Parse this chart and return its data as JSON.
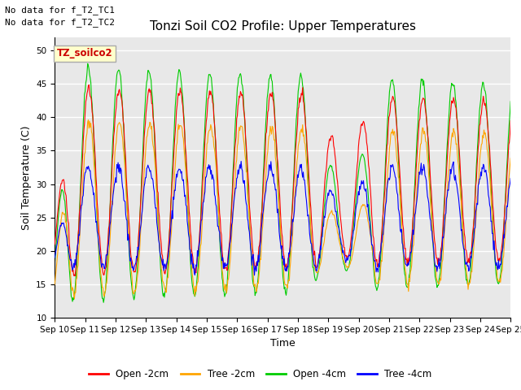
{
  "title": "Tonzi Soil CO2 Profile: Upper Temperatures",
  "xlabel": "Time",
  "ylabel": "Soil Temperature (C)",
  "ylim": [
    10,
    52
  ],
  "yticks": [
    10,
    15,
    20,
    25,
    30,
    35,
    40,
    45,
    50
  ],
  "colors": {
    "open_2cm": "#FF0000",
    "tree_2cm": "#FFA500",
    "open_4cm": "#00CC00",
    "tree_4cm": "#0000FF"
  },
  "legend_labels": [
    "Open -2cm",
    "Tree -2cm",
    "Open -4cm",
    "Tree -4cm"
  ],
  "annotations": [
    "No data for f_T2_TC1",
    "No data for f_T2_TC2"
  ],
  "box_label": "TZ_soilco2",
  "background_color": "#E8E8E8",
  "fig_background": "#FFFFFF",
  "grid_color": "#FFFFFF",
  "title_fontsize": 11,
  "axis_fontsize": 9,
  "tick_fontsize": 7.5,
  "annotation_fontsize": 8
}
